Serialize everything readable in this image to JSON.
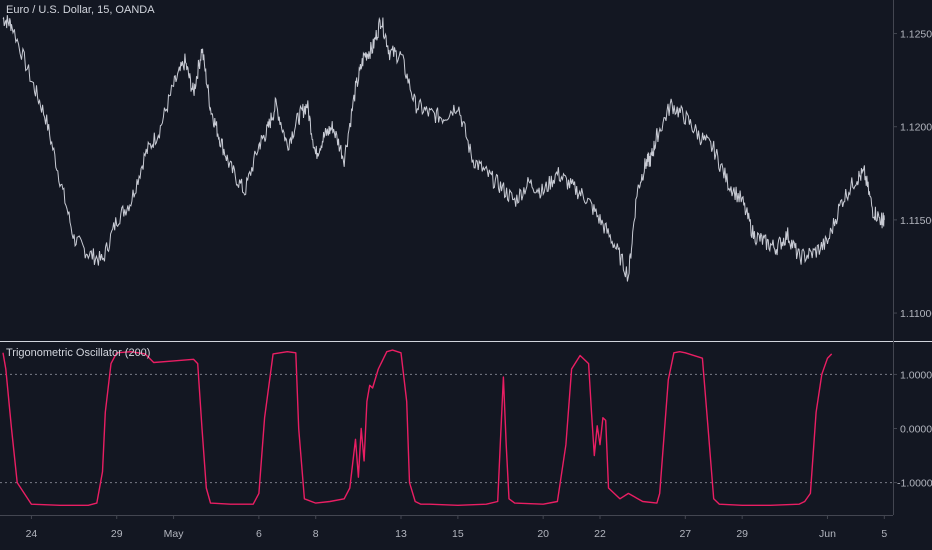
{
  "colors": {
    "background": "#131722",
    "price_line": "#c8cbd4",
    "oscillator": "#e91e63",
    "separator": "#d1d4dc",
    "level_line": "#787b86",
    "text": "#b2b5be"
  },
  "chart_data": [
    {
      "type": "line",
      "title": "Euro / U.S. Dollar, 15, OANDA",
      "y_axis_labels": [
        "1.12500",
        "1.12000",
        "1.11500",
        "1.11000"
      ],
      "ylim": [
        1.1085,
        1.1268
      ],
      "grid": false,
      "series": [
        {
          "x": [
            0,
            0.3,
            1.0,
            1.5,
            2.0,
            2.5,
            3.0,
            3.5,
            4.0,
            4.5,
            5.0,
            5.5,
            6.0,
            6.4,
            6.7,
            7.0,
            7.3,
            7.6,
            8.0,
            8.5,
            9.0,
            9.3,
            9.6,
            10.0,
            10.4,
            10.7,
            11.0,
            11.3,
            11.6,
            12.0,
            12.4,
            12.7,
            13.0,
            13.3,
            13.6,
            14.0,
            14.5,
            15.0,
            15.5,
            16.0,
            16.5,
            17.0,
            17.5,
            18.0,
            18.5,
            19.0,
            19.5,
            20.0,
            20.5,
            21.0,
            21.5,
            22.0,
            22.3,
            22.6,
            22.8,
            23.0,
            23.5,
            24.0,
            24.5,
            25.0,
            25.5,
            26.0,
            26.4,
            26.8,
            27.2,
            27.6,
            28.0,
            28.5,
            29.0,
            29.5,
            30.0,
            30.3,
            30.6,
            30.9,
            31.0
          ],
          "values": [
            1.1258,
            1.1255,
            1.1225,
            1.1205,
            1.1172,
            1.114,
            1.1132,
            1.1128,
            1.115,
            1.116,
            1.1185,
            1.1198,
            1.1222,
            1.1235,
            1.1218,
            1.1242,
            1.121,
            1.1195,
            1.1178,
            1.1165,
            1.119,
            1.1198,
            1.1212,
            1.119,
            1.1205,
            1.1212,
            1.1185,
            1.1195,
            1.12,
            1.1183,
            1.122,
            1.1238,
            1.1242,
            1.1258,
            1.124,
            1.1238,
            1.1212,
            1.1207,
            1.1205,
            1.1212,
            1.1183,
            1.1175,
            1.1168,
            1.116,
            1.117,
            1.1165,
            1.1175,
            1.1168,
            1.1162,
            1.115,
            1.1137,
            1.112,
            1.1165,
            1.118,
            1.1183,
            1.1195,
            1.1212,
            1.1205,
            1.1195,
            1.1188,
            1.117,
            1.116,
            1.1142,
            1.1138,
            1.1135,
            1.1142,
            1.113,
            1.1132,
            1.1138,
            1.116,
            1.1172,
            1.1175,
            1.1155,
            1.115,
            1.115
          ]
        }
      ]
    },
    {
      "type": "line",
      "title": "Trigonometric Oscillator (200)",
      "y_axis_labels": [
        "1.00000",
        "0.00000",
        "-1.00000"
      ],
      "reference_lines": [
        1.0,
        -1.0
      ],
      "ylim": [
        -1.6,
        1.6
      ],
      "grid": false,
      "x_tick_labels": [
        "24",
        "29",
        "May",
        "6",
        "8",
        "13",
        "15",
        "20",
        "22",
        "27",
        "29",
        "Jun",
        "5"
      ],
      "x_tick_positions": [
        1,
        4,
        6,
        9,
        11,
        14,
        16,
        19,
        21,
        24,
        26,
        29,
        31
      ],
      "xlim": [
        0,
        31.2
      ],
      "series": [
        {
          "x": [
            0,
            0.1,
            0.3,
            0.5,
            1.0,
            2.0,
            3.0,
            3.3,
            3.5,
            3.6,
            3.8,
            4.0,
            4.5,
            5.0,
            5.3,
            6.0,
            6.7,
            6.85,
            7.0,
            7.15,
            7.3,
            8.0,
            8.8,
            9.0,
            9.2,
            9.5,
            10.0,
            10.3,
            10.4,
            10.6,
            11.0,
            11.5,
            12.0,
            12.2,
            12.4,
            12.5,
            12.6,
            12.7,
            12.8,
            12.9,
            13.0,
            13.2,
            13.5,
            13.7,
            14.0,
            14.2,
            14.3,
            14.5,
            14.7,
            15.0,
            16.0,
            17.0,
            17.4,
            17.5,
            17.6,
            17.7,
            17.8,
            18.0,
            19.0,
            19.5,
            19.8,
            20.0,
            20.3,
            20.6,
            20.7,
            20.8,
            20.9,
            21.0,
            21.1,
            21.2,
            21.3,
            21.5,
            21.7,
            22.0,
            22.5,
            23.0,
            23.1,
            23.4,
            23.6,
            23.8,
            24.0,
            24.6,
            24.8,
            25.0,
            25.2,
            26.0,
            27.0,
            28.0,
            28.2,
            28.4,
            28.6,
            28.8,
            29.0,
            29.15
          ],
          "values": [
            1.4,
            1.1,
            0.0,
            -1.0,
            -1.4,
            -1.42,
            -1.42,
            -1.38,
            -0.8,
            0.3,
            1.2,
            1.4,
            1.42,
            1.38,
            1.22,
            1.25,
            1.28,
            1.2,
            0.0,
            -1.1,
            -1.38,
            -1.4,
            -1.4,
            -1.2,
            0.2,
            1.38,
            1.42,
            1.4,
            0.0,
            -1.3,
            -1.38,
            -1.35,
            -1.3,
            -1.1,
            -0.2,
            -0.9,
            0.0,
            -0.6,
            0.5,
            0.8,
            0.75,
            1.1,
            1.42,
            1.45,
            1.4,
            0.5,
            -1.0,
            -1.35,
            -1.4,
            -1.4,
            -1.42,
            -1.4,
            -1.35,
            -0.2,
            0.95,
            -0.3,
            -1.3,
            -1.38,
            -1.4,
            -1.35,
            -0.3,
            1.1,
            1.35,
            1.2,
            0.3,
            -0.5,
            0.05,
            -0.3,
            0.2,
            0.15,
            -1.1,
            -1.2,
            -1.3,
            -1.2,
            -1.35,
            -1.38,
            -1.2,
            0.9,
            1.4,
            1.42,
            1.4,
            1.3,
            0.0,
            -1.3,
            -1.4,
            -1.42,
            -1.42,
            -1.4,
            -1.35,
            -1.2,
            0.3,
            1.0,
            1.3,
            1.38
          ]
        }
      ]
    }
  ]
}
